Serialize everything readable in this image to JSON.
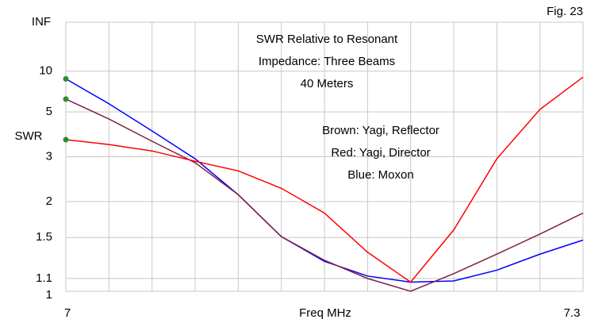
{
  "chart_data": {
    "type": "line",
    "title": [
      "SWR Relative to Resonant",
      "Impedance: Three Beams",
      "40 Meters"
    ],
    "annotations": [
      "Brown: Yagi, Reflector",
      "Red: Yagi, Director",
      "Blue: Moxon"
    ],
    "figure_label": "Fig. 23",
    "x_label": "Freq MHz",
    "y_label": "SWR",
    "yscale": "reflection",
    "y_top_label": "INF",
    "x": [
      7.0,
      7.025,
      7.05,
      7.075,
      7.1,
      7.125,
      7.15,
      7.175,
      7.2,
      7.225,
      7.25,
      7.275,
      7.3
    ],
    "xlim": [
      7.0,
      7.3
    ],
    "xticks": [
      7,
      7.3
    ],
    "xgrid": [
      7.025,
      7.05,
      7.075,
      7.1,
      7.125,
      7.15,
      7.175,
      7.2,
      7.225,
      7.25,
      7.275
    ],
    "yticks": [
      1,
      1.1,
      1.5,
      2,
      3,
      5,
      10
    ],
    "grid": true,
    "start_marker_color": "#2e8b2e",
    "series": [
      {
        "color": "#0000ff",
        "values": [
          8.5,
          5.6,
          3.95,
          2.94,
          2.12,
          1.51,
          1.25,
          1.12,
          1.07,
          1.08,
          1.17,
          1.32,
          1.47
        ]
      },
      {
        "color": "#80204a",
        "values": [
          6.0,
          4.56,
          3.52,
          2.83,
          2.12,
          1.51,
          1.26,
          1.1,
          1.0,
          1.14,
          1.32,
          1.54,
          1.82
        ]
      },
      {
        "color": "#ff0000",
        "values": [
          3.58,
          3.4,
          3.18,
          2.87,
          2.62,
          2.24,
          1.82,
          1.34,
          1.07,
          1.59,
          2.94,
          5.17,
          8.8
        ]
      }
    ]
  }
}
